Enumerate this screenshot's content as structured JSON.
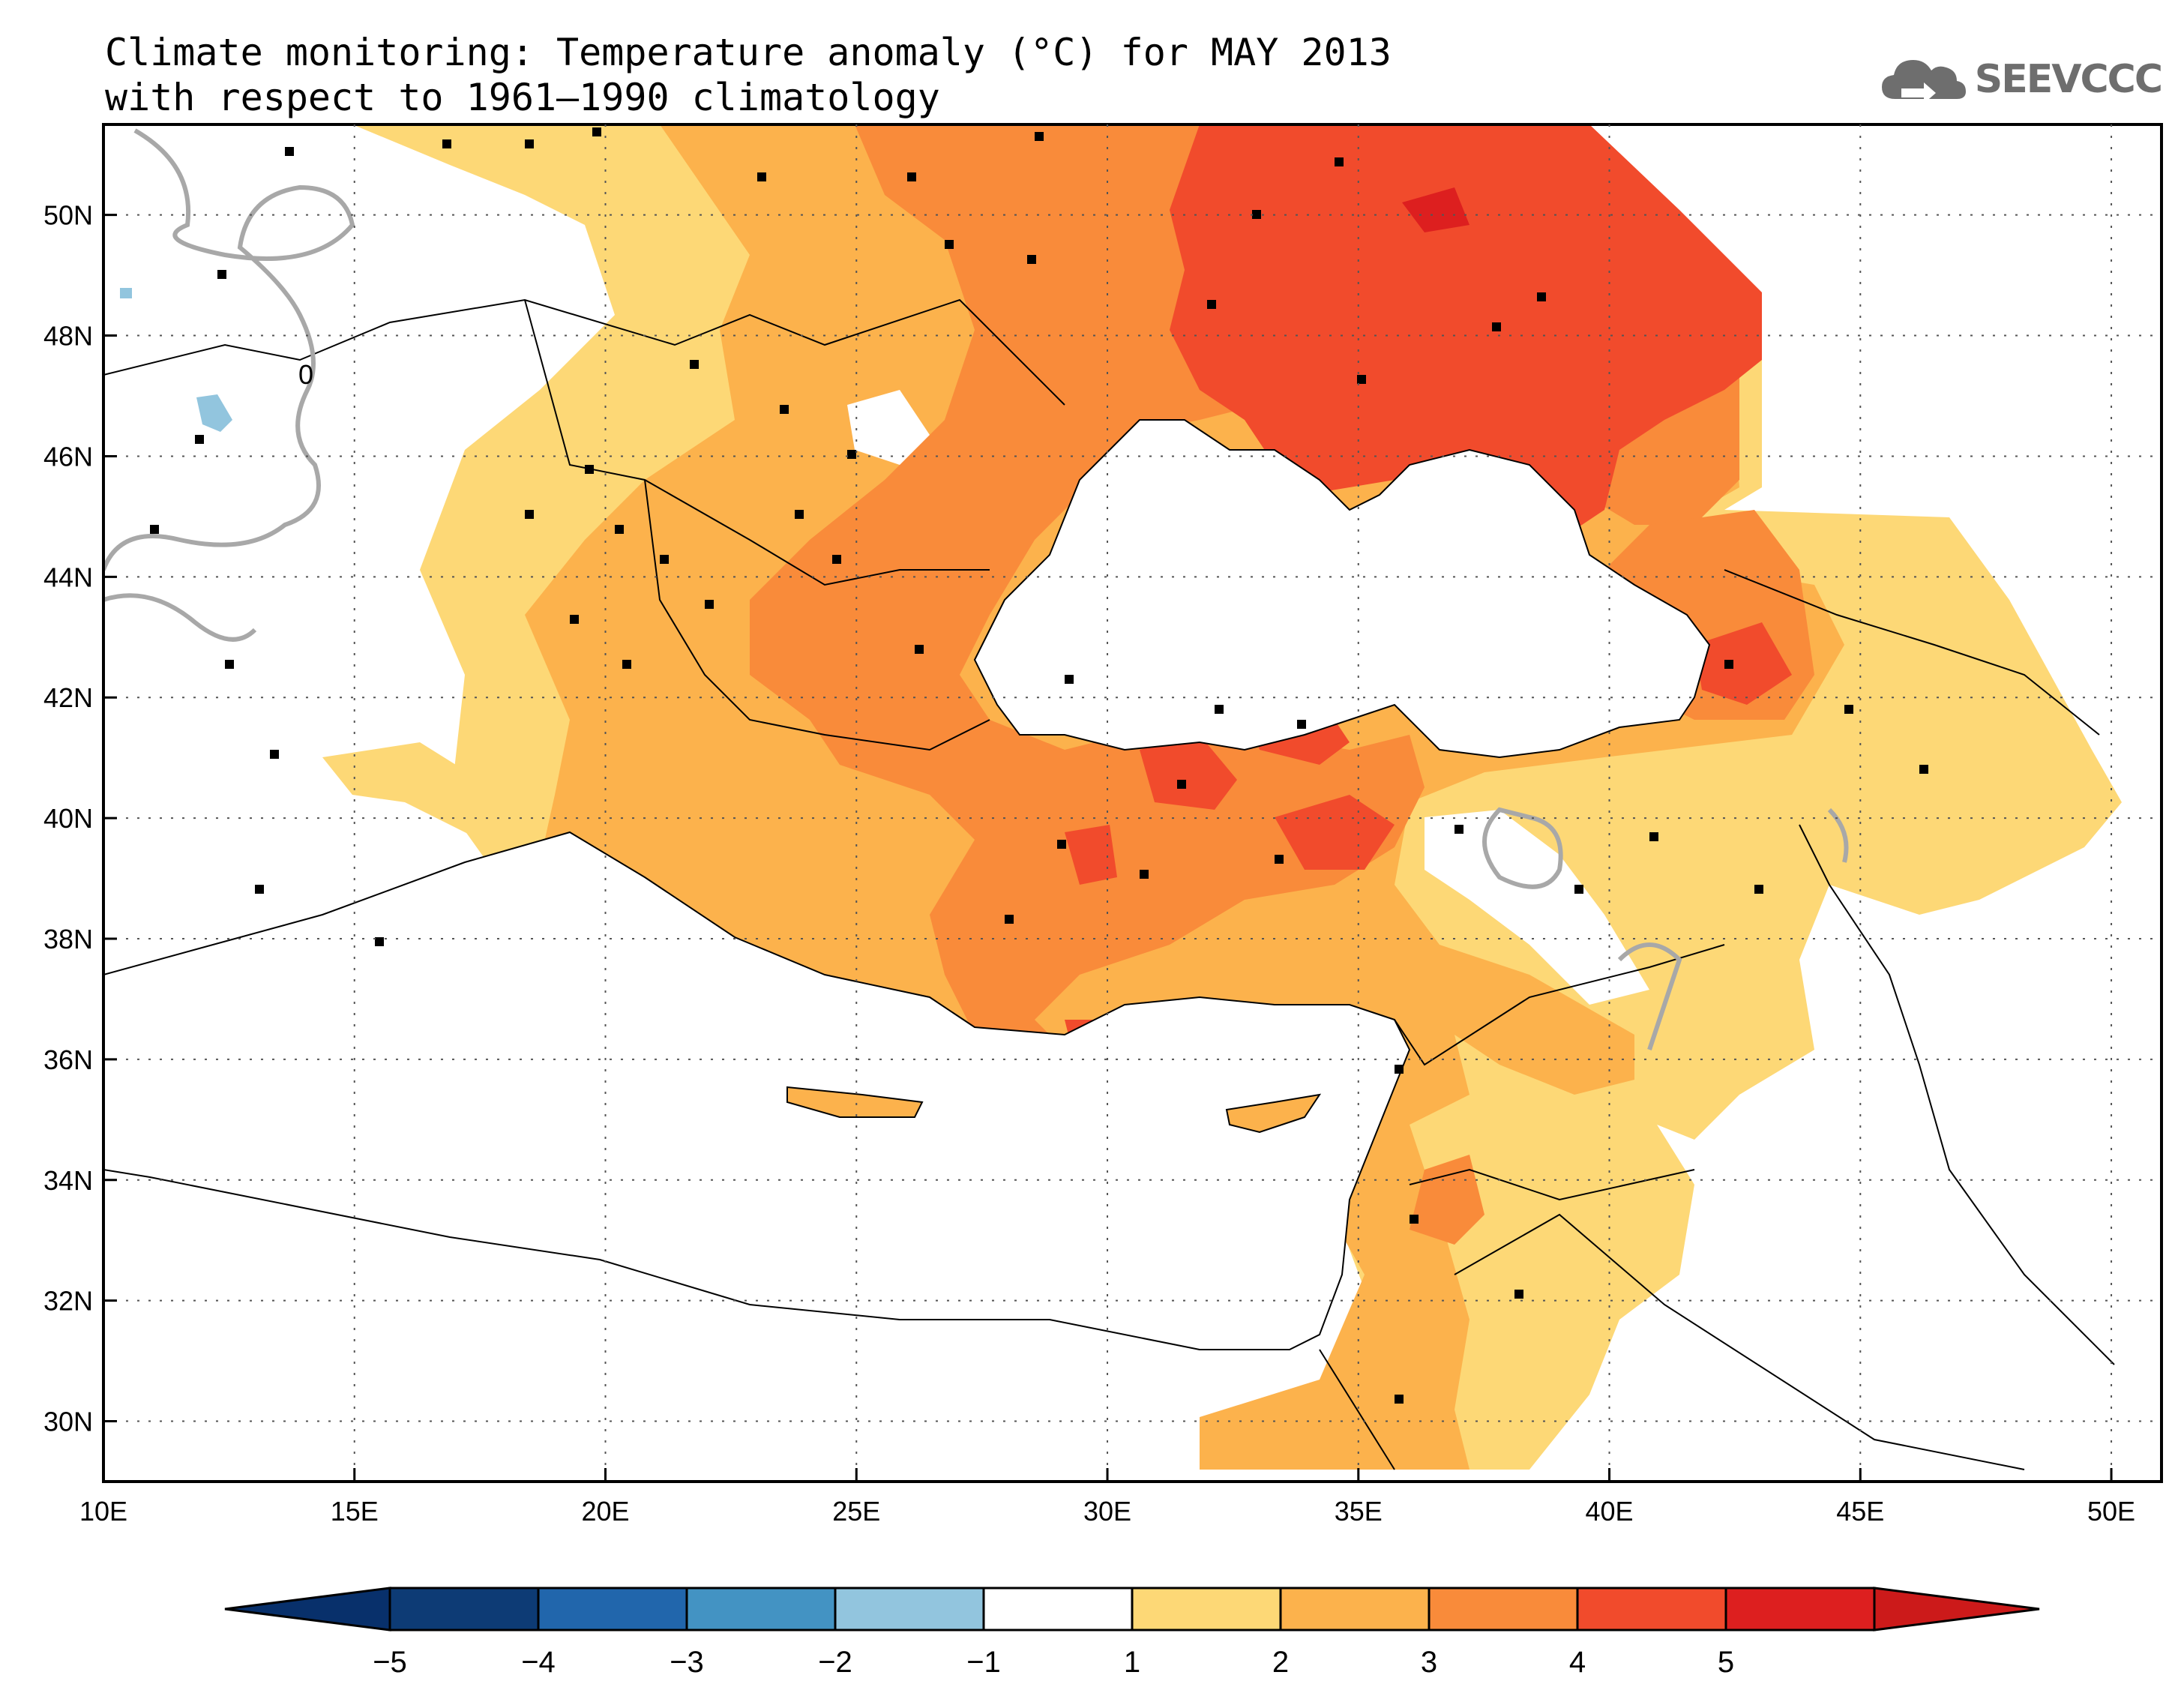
{
  "title": {
    "line1": "Climate monitoring: Temperature anomaly (°C) for MAY 2013",
    "line2": "with respect to 1961–1990 climatology"
  },
  "logo": {
    "text": "SEEVCCC",
    "icon": "cloud-icon"
  },
  "map": {
    "lon_range": [
      10,
      51
    ],
    "lat_range": [
      29,
      51.5
    ],
    "x_ticks": [
      "10E",
      "15E",
      "20E",
      "25E",
      "30E",
      "35E",
      "40E",
      "45E",
      "50E"
    ],
    "y_ticks": [
      "50N",
      "48N",
      "46N",
      "44N",
      "42N",
      "40N",
      "38N",
      "36N",
      "34N",
      "32N",
      "30N"
    ],
    "grid": "dotted",
    "contour_label": "0"
  },
  "colorbar": {
    "labels": [
      "−5",
      "−4",
      "−3",
      "−2",
      "−1",
      "1",
      "2",
      "3",
      "4",
      "5"
    ],
    "colors": [
      "#0d3b75",
      "#2166ac",
      "#4393c3",
      "#92c5de",
      "#ffffff",
      "#fdd876",
      "#fcb24c",
      "#f98b3a",
      "#f14b2c",
      "#dd1f1f"
    ],
    "below_color": "#08306b",
    "above_color": "#cc1a1a"
  }
}
